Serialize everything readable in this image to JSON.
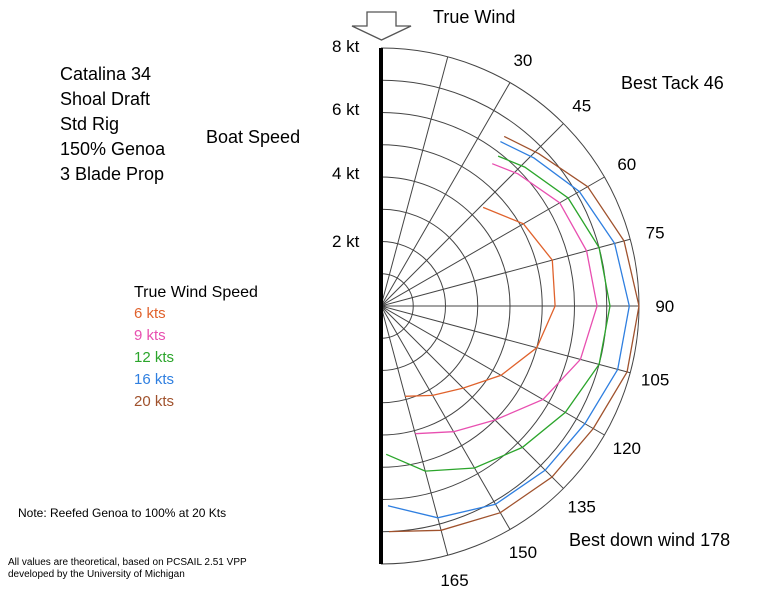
{
  "boat": {
    "lines": [
      "Catalina 34",
      "Shoal Draft",
      "Std Rig",
      "150% Genoa",
      "3 Blade Prop"
    ]
  },
  "legend": {
    "title": "True Wind Speed",
    "items": [
      {
        "label": "6 kts",
        "color": "#e0622c"
      },
      {
        "label": "9 kts",
        "color": "#e84fb0"
      },
      {
        "label": "12 kts",
        "color": "#2ba52b"
      },
      {
        "label": "16 kts",
        "color": "#2f7fe0"
      },
      {
        "label": "20 kts",
        "color": "#a0522d"
      }
    ]
  },
  "note": "Note:  Reefed Genoa to  100% at 20 Kts",
  "disclaimer": [
    "All values are theoretical, based on PCSAIL 2.51 VPP",
    "developed by the University of Michigan"
  ],
  "annotations": {
    "true_wind": "True Wind",
    "boat_speed": "Boat Speed",
    "best_tack": "Best Tack 46",
    "best_down_wind": "Best down wind 178"
  },
  "chart_data": {
    "type": "polar",
    "title": "True Wind",
    "radial_label": "Boat Speed",
    "radial_unit": "kt",
    "radial_ticks": [
      {
        "value": 2,
        "label": "2 kt"
      },
      {
        "value": 4,
        "label": "4 kt"
      },
      {
        "value": 6,
        "label": "6 kt"
      },
      {
        "value": 8,
        "label": "8 kt"
      }
    ],
    "rmax": 8,
    "rings": [
      1,
      2,
      3,
      4,
      5,
      6,
      7,
      8
    ],
    "angle_ticks": [
      30,
      45,
      60,
      75,
      90,
      105,
      120,
      135,
      150,
      165
    ],
    "spokes": [
      15,
      30,
      45,
      60,
      75,
      90,
      105,
      120,
      135,
      150,
      165
    ],
    "series": [
      {
        "name": "6 kts",
        "color": "#e0622c",
        "angles": [
          46,
          60,
          75,
          90,
          105,
          120,
          135,
          150,
          165
        ],
        "speeds": [
          4.4,
          5.1,
          5.5,
          5.4,
          5.0,
          4.3,
          3.6,
          3.2,
          2.9
        ]
      },
      {
        "name": "9 kts",
        "color": "#e84fb0",
        "angles": [
          38,
          46,
          60,
          75,
          90,
          105,
          120,
          135,
          150,
          165
        ],
        "speeds": [
          5.6,
          5.9,
          6.4,
          6.6,
          6.7,
          6.4,
          5.8,
          5.0,
          4.5,
          4.1
        ]
      },
      {
        "name": "12 kts",
        "color": "#2ba52b",
        "angles": [
          38,
          46,
          60,
          75,
          90,
          105,
          120,
          135,
          150,
          165,
          178
        ],
        "speeds": [
          5.9,
          6.2,
          6.7,
          7.0,
          7.1,
          7.0,
          6.6,
          6.2,
          5.8,
          5.3,
          4.6
        ]
      },
      {
        "name": "16 kts",
        "color": "#2f7fe0",
        "angles": [
          36,
          46,
          60,
          75,
          90,
          105,
          120,
          135,
          150,
          165,
          178
        ],
        "speeds": [
          6.3,
          6.6,
          7.1,
          7.5,
          7.7,
          7.6,
          7.3,
          7.2,
          7.1,
          6.8,
          6.2
        ]
      },
      {
        "name": "20 kts",
        "color": "#a0522d",
        "angles": [
          36,
          46,
          60,
          75,
          90,
          105,
          120,
          135,
          150,
          165,
          178
        ],
        "speeds": [
          6.5,
          6.8,
          7.4,
          7.8,
          8.0,
          7.9,
          7.6,
          7.5,
          7.4,
          7.2,
          7.0
        ]
      }
    ]
  }
}
